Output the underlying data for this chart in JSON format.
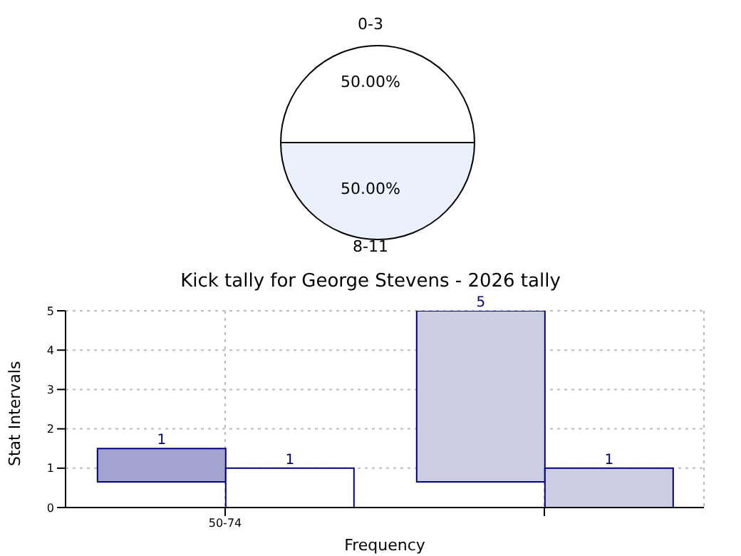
{
  "chart_data": [
    {
      "type": "pie",
      "categories": [
        "0-3",
        "8-11"
      ],
      "values": [
        50,
        50
      ],
      "colors": [
        "#ffffff",
        "#eaf0fc"
      ],
      "value_labels": [
        "50.00%",
        "50.00%"
      ]
    },
    {
      "type": "bar",
      "title": "Kick tally for George Stevens - 2026 tally",
      "xlabel": "Frequency",
      "ylabel": "Stat Intervals",
      "categories": [
        "50-74",
        null
      ],
      "series": [
        {
          "colors": [
            "#a3a3cf",
            "#cccce3"
          ],
          "base": [
            0.65,
            0.65
          ],
          "values": [
            0.85,
            4.35
          ],
          "value_labels": [
            "1",
            "5"
          ]
        },
        {
          "colors": [
            "#ffffff",
            "#cccce3"
          ],
          "values": [
            1,
            1
          ],
          "value_labels": [
            "1",
            "1"
          ]
        }
      ],
      "ylim": [
        0,
        5
      ],
      "yticks": [
        0,
        1,
        2,
        3,
        4,
        5
      ],
      "grid": true
    }
  ]
}
